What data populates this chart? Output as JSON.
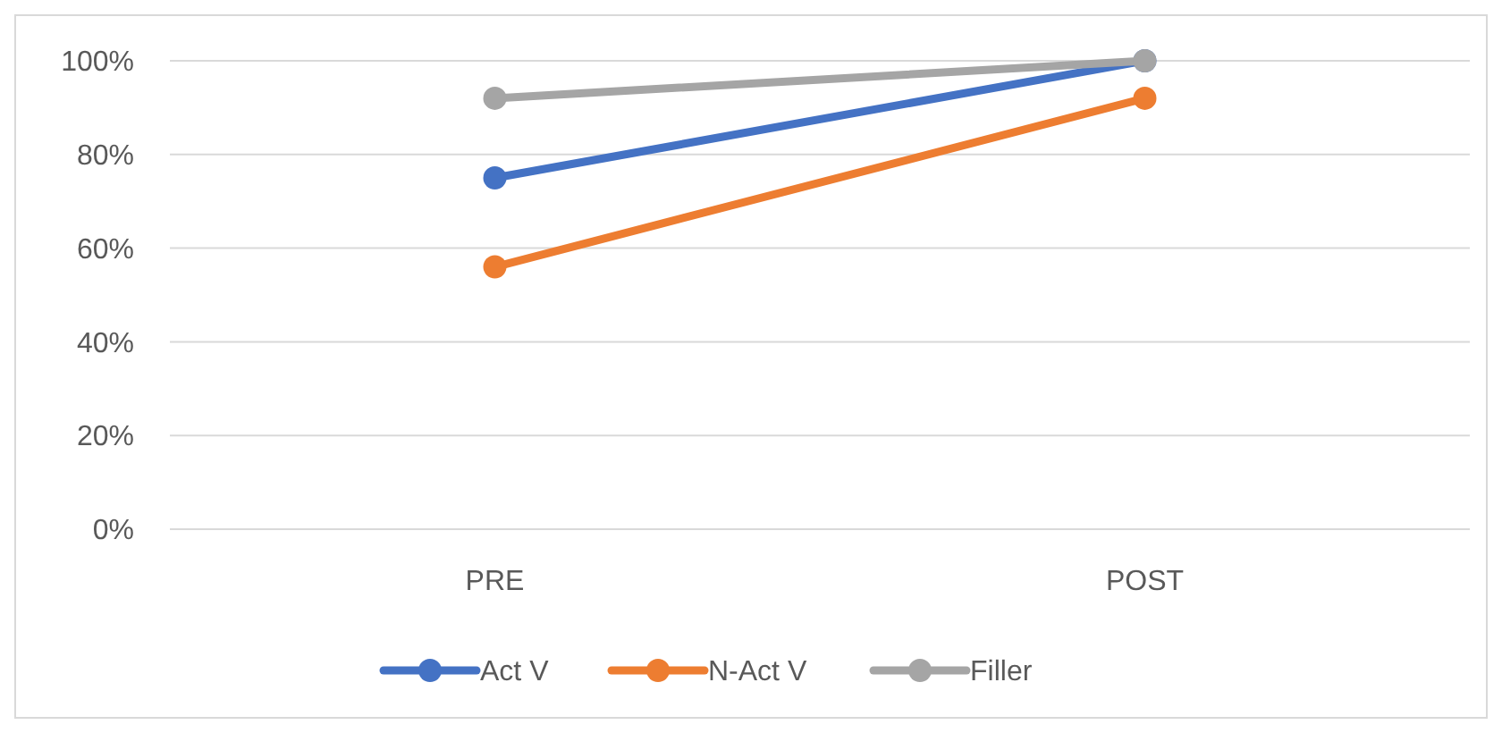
{
  "chart_data": {
    "type": "line",
    "categories": [
      "PRE",
      "POST"
    ],
    "series": [
      {
        "name": "Act V",
        "color": "#4472c4",
        "values": [
          75,
          100
        ]
      },
      {
        "name": "N-Act V",
        "color": "#ed7d31",
        "values": [
          56,
          92
        ]
      },
      {
        "name": "Filler",
        "color": "#a5a5a5",
        "values": [
          92,
          100
        ]
      }
    ],
    "ylim": [
      0,
      100
    ],
    "yticks": [
      {
        "value": 0,
        "label": "0%"
      },
      {
        "value": 20,
        "label": "20%"
      },
      {
        "value": 40,
        "label": "40%"
      },
      {
        "value": 60,
        "label": "60%"
      },
      {
        "value": 80,
        "label": "80%"
      },
      {
        "value": 100,
        "label": "100%"
      }
    ],
    "grid": "y",
    "legend": "bottom",
    "marker": "circle",
    "line_style": "solid"
  }
}
